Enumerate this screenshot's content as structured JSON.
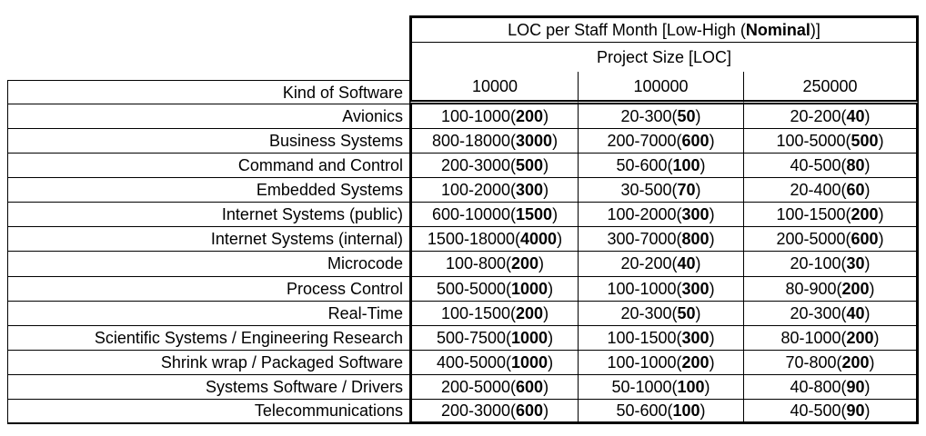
{
  "colors": {
    "background": "#ffffff",
    "border": "#000000",
    "text": "#000000"
  },
  "table": {
    "title": {
      "pre": "LOC per Staff Month [Low-High (",
      "bold": "Nominal",
      "post": ")]"
    },
    "subtitle": "Project Size [LOC]",
    "kind_of_software_label": "Kind of Software",
    "size_columns": [
      "10000",
      "100000",
      "250000"
    ],
    "rows": [
      {
        "name": "Avionics",
        "cells": [
          {
            "pre": "100-1000(",
            "nom": "200",
            "post": ")"
          },
          {
            "pre": "20-300(",
            "nom": "50",
            "post": ")"
          },
          {
            "pre": "20-200(",
            "nom": "40",
            "post": ")"
          }
        ]
      },
      {
        "name": "Business Systems",
        "cells": [
          {
            "pre": "800-18000(",
            "nom": "3000",
            "post": ")"
          },
          {
            "pre": "200-7000(",
            "nom": "600",
            "post": ")"
          },
          {
            "pre": "100-5000(",
            "nom": "500",
            "post": ")"
          }
        ]
      },
      {
        "name": "Command and Control",
        "cells": [
          {
            "pre": "200-3000(",
            "nom": "500",
            "post": ")"
          },
          {
            "pre": "50-600(",
            "nom": "100",
            "post": ")"
          },
          {
            "pre": "40-500(",
            "nom": "80",
            "post": ")"
          }
        ]
      },
      {
        "name": "Embedded Systems",
        "cells": [
          {
            "pre": "100-2000(",
            "nom": "300",
            "post": ")"
          },
          {
            "pre": "30-500(",
            "nom": "70",
            "post": ")"
          },
          {
            "pre": "20-400(",
            "nom": "60",
            "post": ")"
          }
        ]
      },
      {
        "name": "Internet Systems (public)",
        "cells": [
          {
            "pre": "600-10000(",
            "nom": "1500",
            "post": ")"
          },
          {
            "pre": "100-2000(",
            "nom": "300",
            "post": ")"
          },
          {
            "pre": "100-1500(",
            "nom": "200",
            "post": ")"
          }
        ]
      },
      {
        "name": "Internet Systems (internal)",
        "cells": [
          {
            "pre": "1500-18000(",
            "nom": "4000",
            "post": ")"
          },
          {
            "pre": "300-7000(",
            "nom": "800",
            "post": ")"
          },
          {
            "pre": "200-5000(",
            "nom": "600",
            "post": ")"
          }
        ]
      },
      {
        "name": "Microcode",
        "cells": [
          {
            "pre": "100-800(",
            "nom": "200",
            "post": ")"
          },
          {
            "pre": "20-200(",
            "nom": "40",
            "post": ")"
          },
          {
            "pre": "20-100(",
            "nom": "30",
            "post": ")"
          }
        ]
      },
      {
        "name": "Process Control",
        "cells": [
          {
            "pre": "500-5000(",
            "nom": "1000",
            "post": ")"
          },
          {
            "pre": "100-1000(",
            "nom": "300",
            "post": ")"
          },
          {
            "pre": "80-900(",
            "nom": "200",
            "post": ")"
          }
        ]
      },
      {
        "name": "Real-Time",
        "cells": [
          {
            "pre": "100-1500(",
            "nom": "200",
            "post": ")"
          },
          {
            "pre": "20-300(",
            "nom": "50",
            "post": ")"
          },
          {
            "pre": "20-300(",
            "nom": "40",
            "post": ")"
          }
        ]
      },
      {
        "name": "Scientific Systems / Engineering Research",
        "cells": [
          {
            "pre": "500-7500(",
            "nom": "1000",
            "post": ")"
          },
          {
            "pre": "100-1500(",
            "nom": "300",
            "post": ")"
          },
          {
            "pre": "80-1000(",
            "nom": "200",
            "post": ")"
          }
        ]
      },
      {
        "name": "Shrink wrap / Packaged Software",
        "cells": [
          {
            "pre": "400-5000(",
            "nom": "1000",
            "post": ")"
          },
          {
            "pre": "100-1000(",
            "nom": "200",
            "post": ")"
          },
          {
            "pre": "70-800(",
            "nom": "200",
            "post": ")"
          }
        ]
      },
      {
        "name": "Systems Software / Drivers",
        "cells": [
          {
            "pre": "200-5000(",
            "nom": "600",
            "post": ")"
          },
          {
            "pre": "50-1000(",
            "nom": "100",
            "post": ")"
          },
          {
            "pre": "40-800(",
            "nom": "90",
            "post": ")"
          }
        ]
      },
      {
        "name": "Telecommunications",
        "cells": [
          {
            "pre": "200-3000(",
            "nom": "600",
            "post": ")"
          },
          {
            "pre": "50-600(",
            "nom": "100",
            "post": ")"
          },
          {
            "pre": "40-500(",
            "nom": "90",
            "post": ")"
          }
        ]
      }
    ]
  }
}
